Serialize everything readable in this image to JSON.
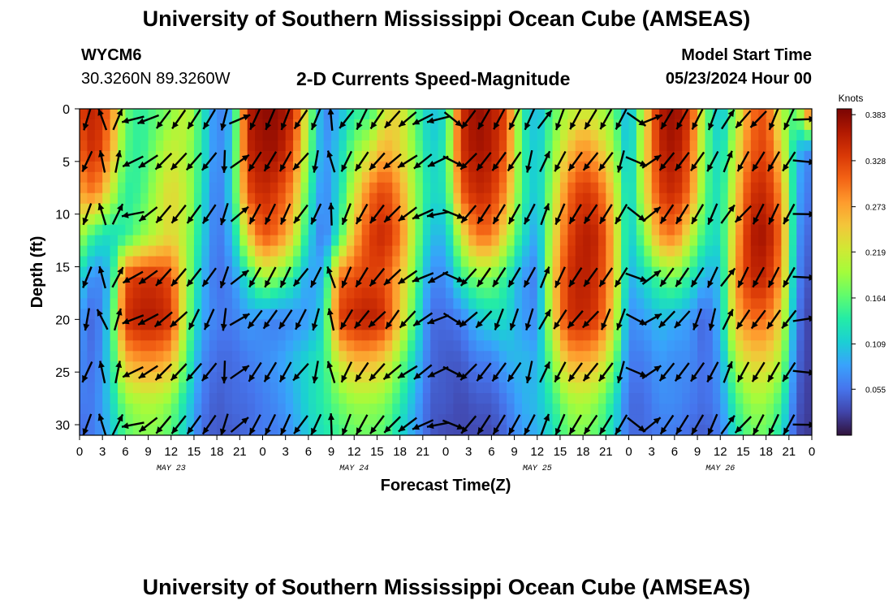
{
  "header": {
    "title": "University of Southern Mississippi Ocean Cube (AMSEAS)",
    "station_id": "WYCM6",
    "coordinates": "30.3260N  89.3260W",
    "subtitle": "2-D Currents Speed-Magnitude",
    "model_start_label": "Model Start Time",
    "model_start_value": "05/23/2024 Hour 00"
  },
  "footer": {
    "title": "University of Southern Mississippi Ocean Cube (AMSEAS)"
  },
  "chart_data": {
    "type": "heatmap",
    "title": "2-D Currents Speed-Magnitude",
    "xlabel": "Forecast Time(Z)",
    "ylabel": "Depth (ft)",
    "x_unit": "hours since 05/23/2024 00Z",
    "xlim": [
      0,
      96
    ],
    "ylim": [
      0,
      31
    ],
    "x_tick_values": [
      0,
      3,
      6,
      9,
      12,
      15,
      18,
      21,
      24,
      27,
      30,
      33,
      36,
      39,
      42,
      45,
      48,
      51,
      54,
      57,
      60,
      63,
      66,
      69,
      72,
      75,
      78,
      81,
      84,
      87,
      90,
      93,
      96
    ],
    "x_tick_labels": [
      "0",
      "3",
      "6",
      "9",
      "12",
      "15",
      "18",
      "21",
      "0",
      "3",
      "6",
      "9",
      "12",
      "15",
      "18",
      "21",
      "0",
      "3",
      "6",
      "9",
      "12",
      "15",
      "18",
      "21",
      "0",
      "3",
      "6",
      "9",
      "12",
      "15",
      "18",
      "21",
      "0"
    ],
    "day_labels": [
      {
        "hour": 12,
        "label": "MAY 23"
      },
      {
        "hour": 36,
        "label": "MAY 24"
      },
      {
        "hour": 60,
        "label": "MAY 25"
      },
      {
        "hour": 84,
        "label": "MAY 26"
      }
    ],
    "y_ticks": [
      0,
      5,
      10,
      15,
      20,
      25,
      30
    ],
    "colorbar": {
      "unit": "Knots",
      "min": 0.0,
      "max": 0.39,
      "ticks": [
        0.383,
        0.328,
        0.273,
        0.219,
        0.164,
        0.109,
        0.055
      ],
      "tick_labels": [
        "0.383",
        "0.328",
        "0.273",
        "0.219",
        "0.164",
        "0.109",
        "0.055"
      ],
      "colors": [
        "#30123b",
        "#4145ab",
        "#4675ed",
        "#39a2fc",
        "#1bcfd4",
        "#24eca6",
        "#61fc6c",
        "#a4fc3b",
        "#d1e834",
        "#f3c63a",
        "#fe9b2d",
        "#f36315",
        "#d93806",
        "#b11901",
        "#7a0403"
      ]
    },
    "depths_ft": [
      0,
      4,
      8,
      12,
      16,
      20,
      24,
      28,
      31
    ],
    "times_hr": [
      0,
      2,
      4,
      6,
      8,
      10,
      12,
      14,
      16,
      18,
      20,
      22,
      24,
      26,
      28,
      30,
      32,
      34,
      36,
      38,
      40,
      42,
      44,
      46,
      48,
      50,
      52,
      54,
      56,
      58,
      60,
      62,
      64,
      66,
      68,
      70,
      72,
      74,
      76,
      78,
      80,
      82,
      84,
      86,
      88,
      90,
      92,
      94,
      96
    ],
    "speed_knots": [
      [
        0.33,
        0.36,
        0.3,
        0.17,
        0.14,
        0.16,
        0.18,
        0.22,
        0.14,
        0.06,
        0.09,
        0.36,
        0.38,
        0.38,
        0.35,
        0.2,
        0.06,
        0.09,
        0.14,
        0.14,
        0.22,
        0.24,
        0.16,
        0.1,
        0.12,
        0.34,
        0.38,
        0.36,
        0.33,
        0.14,
        0.09,
        0.16,
        0.2,
        0.22,
        0.2,
        0.17,
        0.08,
        0.22,
        0.36,
        0.38,
        0.34,
        0.18,
        0.09,
        0.19,
        0.3,
        0.32,
        0.2,
        0.16,
        0.35
      ],
      [
        0.31,
        0.35,
        0.28,
        0.16,
        0.14,
        0.18,
        0.22,
        0.2,
        0.14,
        0.06,
        0.11,
        0.35,
        0.37,
        0.37,
        0.32,
        0.18,
        0.07,
        0.11,
        0.18,
        0.22,
        0.27,
        0.24,
        0.18,
        0.11,
        0.14,
        0.34,
        0.37,
        0.36,
        0.31,
        0.15,
        0.1,
        0.18,
        0.25,
        0.29,
        0.26,
        0.2,
        0.09,
        0.23,
        0.35,
        0.37,
        0.32,
        0.17,
        0.11,
        0.22,
        0.31,
        0.33,
        0.24,
        0.1,
        0.06
      ],
      [
        0.27,
        0.3,
        0.22,
        0.14,
        0.15,
        0.2,
        0.24,
        0.21,
        0.13,
        0.05,
        0.12,
        0.32,
        0.35,
        0.33,
        0.28,
        0.15,
        0.06,
        0.12,
        0.22,
        0.3,
        0.33,
        0.28,
        0.19,
        0.12,
        0.13,
        0.31,
        0.35,
        0.34,
        0.28,
        0.15,
        0.1,
        0.2,
        0.3,
        0.34,
        0.32,
        0.24,
        0.1,
        0.22,
        0.33,
        0.35,
        0.3,
        0.16,
        0.12,
        0.24,
        0.34,
        0.35,
        0.28,
        0.09,
        0.05
      ],
      [
        0.2,
        0.14,
        0.12,
        0.14,
        0.18,
        0.21,
        0.24,
        0.2,
        0.12,
        0.05,
        0.1,
        0.24,
        0.32,
        0.3,
        0.24,
        0.12,
        0.05,
        0.14,
        0.26,
        0.33,
        0.35,
        0.3,
        0.19,
        0.1,
        0.1,
        0.22,
        0.3,
        0.3,
        0.22,
        0.13,
        0.08,
        0.22,
        0.32,
        0.36,
        0.35,
        0.26,
        0.1,
        0.18,
        0.28,
        0.3,
        0.22,
        0.14,
        0.12,
        0.26,
        0.36,
        0.37,
        0.3,
        0.08,
        0.04
      ],
      [
        0.12,
        0.06,
        0.1,
        0.32,
        0.34,
        0.34,
        0.32,
        0.2,
        0.1,
        0.05,
        0.07,
        0.13,
        0.2,
        0.18,
        0.14,
        0.08,
        0.1,
        0.3,
        0.32,
        0.33,
        0.32,
        0.26,
        0.17,
        0.07,
        0.07,
        0.14,
        0.18,
        0.18,
        0.14,
        0.08,
        0.06,
        0.24,
        0.34,
        0.36,
        0.34,
        0.26,
        0.09,
        0.12,
        0.16,
        0.18,
        0.14,
        0.09,
        0.1,
        0.28,
        0.35,
        0.35,
        0.28,
        0.07,
        0.03
      ],
      [
        0.08,
        0.04,
        0.12,
        0.34,
        0.36,
        0.36,
        0.34,
        0.19,
        0.09,
        0.06,
        0.06,
        0.08,
        0.07,
        0.06,
        0.07,
        0.08,
        0.12,
        0.33,
        0.35,
        0.36,
        0.34,
        0.25,
        0.15,
        0.05,
        0.05,
        0.06,
        0.1,
        0.12,
        0.12,
        0.08,
        0.07,
        0.23,
        0.34,
        0.35,
        0.33,
        0.24,
        0.07,
        0.08,
        0.1,
        0.09,
        0.08,
        0.04,
        0.1,
        0.26,
        0.3,
        0.3,
        0.24,
        0.06,
        0.02
      ],
      [
        0.07,
        0.05,
        0.12,
        0.26,
        0.28,
        0.28,
        0.26,
        0.16,
        0.07,
        0.05,
        0.05,
        0.06,
        0.07,
        0.08,
        0.1,
        0.12,
        0.14,
        0.22,
        0.26,
        0.26,
        0.24,
        0.18,
        0.11,
        0.05,
        0.04,
        0.04,
        0.06,
        0.06,
        0.09,
        0.1,
        0.09,
        0.18,
        0.26,
        0.27,
        0.25,
        0.18,
        0.06,
        0.06,
        0.08,
        0.07,
        0.07,
        0.05,
        0.08,
        0.2,
        0.24,
        0.24,
        0.2,
        0.05,
        0.02
      ],
      [
        0.06,
        0.06,
        0.11,
        0.18,
        0.2,
        0.2,
        0.18,
        0.12,
        0.06,
        0.04,
        0.05,
        0.05,
        0.06,
        0.07,
        0.09,
        0.12,
        0.14,
        0.17,
        0.19,
        0.19,
        0.18,
        0.14,
        0.09,
        0.04,
        0.04,
        0.03,
        0.04,
        0.04,
        0.06,
        0.09,
        0.1,
        0.14,
        0.19,
        0.2,
        0.18,
        0.13,
        0.05,
        0.05,
        0.07,
        0.07,
        0.06,
        0.05,
        0.07,
        0.15,
        0.19,
        0.19,
        0.15,
        0.04,
        0.02
      ],
      [
        0.05,
        0.06,
        0.1,
        0.16,
        0.18,
        0.18,
        0.16,
        0.11,
        0.05,
        0.04,
        0.04,
        0.05,
        0.06,
        0.06,
        0.08,
        0.11,
        0.13,
        0.15,
        0.17,
        0.17,
        0.16,
        0.12,
        0.08,
        0.04,
        0.03,
        0.03,
        0.03,
        0.03,
        0.05,
        0.08,
        0.09,
        0.12,
        0.17,
        0.18,
        0.16,
        0.12,
        0.05,
        0.05,
        0.06,
        0.06,
        0.05,
        0.04,
        0.06,
        0.13,
        0.17,
        0.17,
        0.13,
        0.03,
        0.02
      ]
    ],
    "vector_series": {
      "times_hr": [
        1,
        3,
        5,
        7,
        9,
        11,
        13,
        15,
        17,
        19,
        21,
        23,
        25,
        27,
        29,
        31,
        33,
        35,
        37,
        39,
        41,
        43,
        45,
        47,
        49,
        51,
        53,
        55,
        57,
        59,
        61,
        63,
        65,
        67,
        69,
        71,
        73,
        75,
        77,
        79,
        81,
        83,
        85,
        87,
        89,
        91,
        93,
        95
      ],
      "direction_deg": [
        200,
        340,
        20,
        250,
        240,
        225,
        220,
        215,
        210,
        190,
        60,
        215,
        210,
        205,
        215,
        200,
        350,
        210,
        215,
        220,
        225,
        230,
        240,
        250,
        120,
        225,
        215,
        210,
        205,
        200,
        30,
        210,
        215,
        215,
        210,
        205,
        120,
        60,
        220,
        215,
        210,
        200,
        30,
        215,
        215,
        210,
        210,
        90
      ]
    },
    "vector_depths_ft": [
      1,
      5,
      10,
      16,
      20,
      25,
      30
    ]
  }
}
